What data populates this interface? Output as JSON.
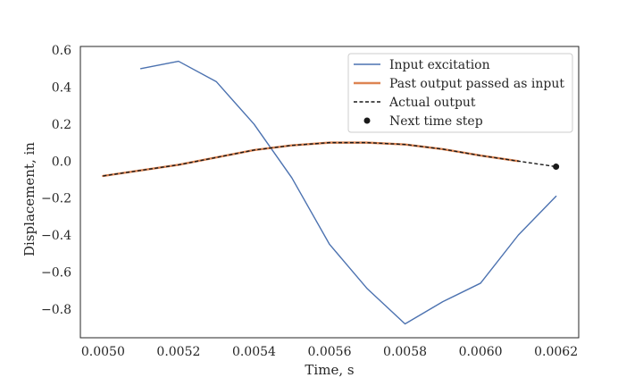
{
  "chart_data": {
    "type": "line",
    "xlabel": "Time, s",
    "ylabel": "Displacement, in",
    "xlim": [
      0.00494,
      0.00626
    ],
    "ylim": [
      -0.955,
      0.62
    ],
    "xticks": [
      0.005,
      0.0052,
      0.0054,
      0.0056,
      0.0058,
      0.006,
      0.0062
    ],
    "xtick_labels": [
      "0.0050",
      "0.0052",
      "0.0054",
      "0.0056",
      "0.0058",
      "0.0060",
      "0.0062"
    ],
    "yticks": [
      -0.8,
      -0.6,
      -0.4,
      -0.2,
      0.0,
      0.2,
      0.4,
      0.6
    ],
    "ytick_labels": [
      "−0.8",
      "−0.6",
      "−0.4",
      "−0.2",
      "0.0",
      "0.2",
      "0.4",
      "0.6"
    ],
    "grid": false,
    "legend_position": "top-right",
    "series": [
      {
        "name": "Input excitation",
        "kind": "line",
        "color": "#4c72b0",
        "x": [
          0.0051,
          0.0052,
          0.0053,
          0.0054,
          0.0055,
          0.0056,
          0.0057,
          0.0058,
          0.0059,
          0.006,
          0.0061,
          0.0062
        ],
        "y": [
          0.5,
          0.54,
          0.43,
          0.2,
          -0.09,
          -0.45,
          -0.69,
          -0.88,
          -0.76,
          -0.66,
          -0.4,
          -0.19
        ]
      },
      {
        "name": "Past output passed as input",
        "kind": "line",
        "color": "#dd8452",
        "x": [
          0.005,
          0.0051,
          0.0052,
          0.0053,
          0.0054,
          0.0055,
          0.0056,
          0.0057,
          0.0058,
          0.0059,
          0.006,
          0.0061
        ],
        "y": [
          -0.08,
          -0.05,
          -0.02,
          0.02,
          0.06,
          0.085,
          0.1,
          0.1,
          0.09,
          0.065,
          0.03,
          0.0
        ]
      },
      {
        "name": "Actual output",
        "kind": "dashed",
        "color": "#1a1a1a",
        "x": [
          0.005,
          0.0051,
          0.0052,
          0.0053,
          0.0054,
          0.0055,
          0.0056,
          0.0057,
          0.0058,
          0.0059,
          0.006,
          0.0061,
          0.0062
        ],
        "y": [
          -0.08,
          -0.05,
          -0.02,
          0.02,
          0.06,
          0.085,
          0.1,
          0.1,
          0.09,
          0.065,
          0.03,
          0.0,
          -0.03
        ]
      },
      {
        "name": "Next time step",
        "kind": "point",
        "color": "#1a1a1a",
        "x": [
          0.0062
        ],
        "y": [
          -0.03
        ]
      }
    ]
  }
}
